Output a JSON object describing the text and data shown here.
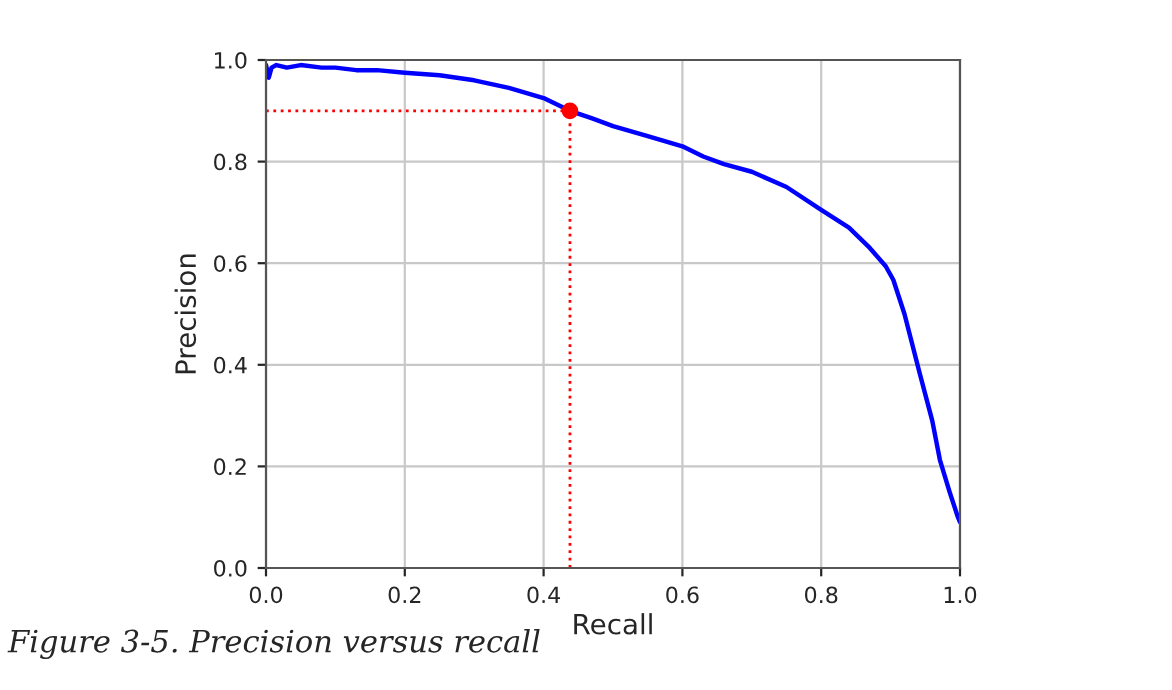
{
  "chart_data": {
    "type": "line",
    "xlabel": "Recall",
    "ylabel": "Precision",
    "annotations": [
      "Figure 3-5. Precision versus recall"
    ],
    "xlim": [
      0,
      1
    ],
    "ylim": [
      0,
      1
    ],
    "xticks": [
      {
        "value": 0,
        "label": "0.0"
      },
      0.2,
      0.4,
      0.6,
      0.8,
      {
        "value": 1,
        "label": "1.0"
      }
    ],
    "yticks": [
      {
        "value": 0,
        "label": "0.0"
      },
      0.2,
      0.4,
      0.6,
      0.8,
      {
        "value": 1,
        "label": "1.0"
      }
    ],
    "grid": true,
    "series": [
      {
        "color": "#0000ff",
        "line_style": "solid",
        "x": [
          0,
          0.004,
          0.008,
          0.015,
          0.03,
          0.05,
          0.08,
          0.1,
          0.13,
          0.16,
          0.2,
          0.25,
          0.3,
          0.35,
          0.4,
          0.438,
          0.47,
          0.5,
          0.55,
          0.6,
          0.63,
          0.66,
          0.7,
          0.75,
          0.8,
          0.84,
          0.87,
          0.893,
          0.904,
          0.92,
          0.942,
          0.96,
          0.971,
          0.985,
          0.997,
          1.0
        ],
        "values": [
          0.99,
          0.965,
          0.985,
          0.99,
          0.985,
          0.99,
          0.985,
          0.985,
          0.98,
          0.98,
          0.975,
          0.97,
          0.96,
          0.945,
          0.925,
          0.9,
          0.885,
          0.87,
          0.85,
          0.83,
          0.81,
          0.795,
          0.78,
          0.75,
          0.705,
          0.67,
          0.63,
          0.594,
          0.567,
          0.5,
          0.383,
          0.29,
          0.213,
          0.15,
          0.1,
          0.09
        ]
      },
      {
        "type": "line",
        "color": "#ff0000",
        "line_style": "dotted",
        "x": [
          0,
          0.438,
          0.438
        ],
        "values": [
          0.9,
          0.9,
          0
        ]
      },
      {
        "type": "scatter",
        "color": "#ff0000",
        "marker": "circle",
        "x": [
          0.438
        ],
        "values": [
          0.9
        ]
      }
    ]
  }
}
